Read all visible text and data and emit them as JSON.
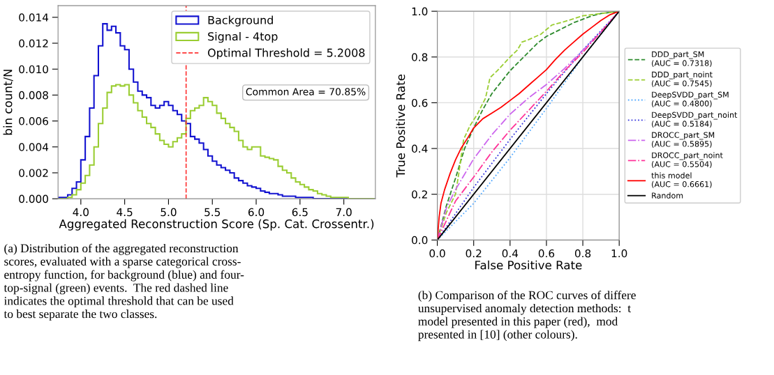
{
  "chart_data": [
    {
      "type": "histogram",
      "xlabel": "Aggregated Reconstruction Score (Sp. Cat. Crossentr.)",
      "ylabel": "bin count/N",
      "bins": [
        3.75,
        3.8,
        3.85,
        3.9,
        3.95,
        4.0,
        4.05,
        4.1,
        4.15,
        4.2,
        4.25,
        4.3,
        4.35,
        4.4,
        4.45,
        4.5,
        4.55,
        4.6,
        4.65,
        4.7,
        4.75,
        4.8,
        4.85,
        4.9,
        4.95,
        5.0,
        5.05,
        5.1,
        5.15,
        5.2,
        5.25,
        5.3,
        5.35,
        5.4,
        5.45,
        5.5,
        5.55,
        5.6,
        5.65,
        5.7,
        5.75,
        5.8,
        5.85,
        5.9,
        5.95,
        6.0,
        6.05,
        6.1,
        6.15,
        6.2,
        6.25,
        6.3,
        6.35,
        6.4,
        6.45,
        6.5,
        6.55,
        6.6,
        6.65,
        6.7,
        6.75,
        6.8,
        6.85,
        6.9,
        6.95,
        7.0,
        7.05,
        7.1,
        7.15,
        7.2,
        7.25,
        7.3,
        7.35
      ],
      "series": [
        {
          "name": "Background",
          "color": "#1212d0",
          "values": [
            0.0001,
            0.0001,
            0.0003,
            0.0008,
            0.0013,
            0.003,
            0.0048,
            0.007,
            0.0095,
            0.0118,
            0.0135,
            0.013,
            0.0133,
            0.0128,
            0.0118,
            0.0115,
            0.01,
            0.009,
            0.0083,
            0.008,
            0.0078,
            0.0072,
            0.007,
            0.0072,
            0.0075,
            0.0072,
            0.0068,
            0.0065,
            0.006,
            0.0058,
            0.0048,
            0.0046,
            0.0043,
            0.0038,
            0.0033,
            0.0029,
            0.0026,
            0.0024,
            0.0022,
            0.002,
            0.0016,
            0.0014,
            0.0012,
            0.001,
            0.0009,
            0.0008,
            0.0006,
            0.0005,
            0.0004,
            0.0004,
            0.0003,
            0.0002,
            0.0002,
            0.0002,
            0.0001,
            0.0001,
            0.0001,
            0.0001,
            0,
            0,
            0,
            0,
            0,
            0,
            0,
            0,
            0,
            0,
            0,
            0,
            0,
            0
          ]
        },
        {
          "name": "Signal - 4top",
          "color": "#9acd32",
          "values": [
            0,
            0,
            0.0001,
            0.0003,
            0.0007,
            0.0012,
            0.0018,
            0.0026,
            0.004,
            0.0058,
            0.007,
            0.0082,
            0.0087,
            0.0088,
            0.0087,
            0.0088,
            0.008,
            0.0074,
            0.0068,
            0.0063,
            0.0058,
            0.0055,
            0.005,
            0.0045,
            0.0042,
            0.004,
            0.0044,
            0.0047,
            0.005,
            0.0062,
            0.0068,
            0.007,
            0.0072,
            0.0078,
            0.0075,
            0.0072,
            0.0066,
            0.0062,
            0.0058,
            0.0055,
            0.0052,
            0.0045,
            0.004,
            0.0038,
            0.004,
            0.004,
            0.0033,
            0.0032,
            0.0031,
            0.003,
            0.0025,
            0.0022,
            0.002,
            0.0016,
            0.0013,
            0.0011,
            0.0009,
            0.0007,
            0.0006,
            0.0004,
            0.0003,
            0.0002,
            0.0001,
            0.0001,
            0.0001,
            0.0001,
            0,
            0,
            0,
            0,
            0,
            0
          ]
        }
      ],
      "xlim": [
        3.74,
        7.36
      ],
      "xticks": [
        {
          "value": 4.0,
          "label": "4.0"
        },
        {
          "value": 4.5,
          "label": "4.5"
        },
        {
          "value": 5.0,
          "label": "5.0"
        },
        {
          "value": 5.5,
          "label": "5.5"
        },
        {
          "value": 6.0,
          "label": "6.0"
        },
        {
          "value": 6.5,
          "label": "6.5"
        },
        {
          "value": 7.0,
          "label": "7.0"
        }
      ],
      "ylim": [
        0,
        0.0149
      ],
      "yticks": [
        {
          "value": 0,
          "label": "0.000"
        },
        {
          "value": 0.002,
          "label": "0.002"
        },
        {
          "value": 0.004,
          "label": "0.004"
        },
        {
          "value": 0.006,
          "label": "0.006"
        },
        {
          "value": 0.008,
          "label": "0.008"
        },
        {
          "value": 0.01,
          "label": "0.010"
        },
        {
          "value": 0.012,
          "label": "0.012"
        },
        {
          "value": 0.014,
          "label": "0.014"
        }
      ],
      "ref_lines": [
        {
          "axis": "x",
          "value": 5.2008,
          "label": "Optimal Threshold = 5.2008",
          "color": "#ff3333",
          "line_style": "dashed"
        }
      ],
      "annotations": [
        "Common Area = 70.85%",
        "(a) Distribution of the aggregated reconstruction\nscores, evaluated with a sparse categorical cross-\nentropy function, for background (blue) and four-\ntop-signal (green) events.  The red dashed line\nindicates the optimal threshold that can be used\nto best separate the two classes."
      ],
      "legend": "top right",
      "grid": false
    },
    {
      "type": "line",
      "xlabel": "False Positive Rate",
      "ylabel": "True Positive Rate",
      "series": [
        {
          "name": "DDD_part_SM\n(AUC = 0.7318)",
          "color": "#2e8b2e",
          "line_style": "dashed",
          "x": [
            0,
            0.05,
            0.1,
            0.15,
            0.2,
            0.25,
            0.3,
            0.35,
            0.4,
            0.45,
            0.5,
            0.55,
            0.6,
            0.65,
            0.7,
            0.75,
            0.8,
            0.85,
            0.9,
            1
          ],
          "values": [
            0,
            0.15,
            0.27,
            0.4,
            0.49,
            0.57,
            0.64,
            0.69,
            0.74,
            0.78,
            0.82,
            0.86,
            0.89,
            0.91,
            0.93,
            0.95,
            0.965,
            0.98,
            0.99,
            1
          ]
        },
        {
          "name": "DDD_part_noint\n(AUC = 0.7545)",
          "color": "#9acd32",
          "line_style": "dashed",
          "x": [
            0,
            0.05,
            0.1,
            0.12,
            0.13,
            0.145,
            0.18,
            0.22,
            0.265,
            0.29,
            0.33,
            0.4,
            0.44,
            0.465,
            0.5,
            0.57,
            0.63,
            0.7,
            0.8,
            0.9,
            1
          ],
          "values": [
            0,
            0.12,
            0.2,
            0.3,
            0.36,
            0.44,
            0.5,
            0.55,
            0.62,
            0.71,
            0.74,
            0.8,
            0.83,
            0.865,
            0.875,
            0.9,
            0.94,
            0.955,
            0.98,
            0.99,
            1
          ]
        },
        {
          "name": "DeepSVDD_part_SM\n(AUC = 0.4800)",
          "color": "#55aaff",
          "line_style": "dotted",
          "x": [
            0,
            0.2,
            0.4,
            0.6,
            0.8,
            0.9,
            1
          ],
          "values": [
            0,
            0.16,
            0.36,
            0.575,
            0.8,
            0.9,
            1
          ]
        },
        {
          "name": "DeepSVDD_part_noint\n(AUC = 0.5184)",
          "color": "#3333dd",
          "line_style": "dotted",
          "x": [
            0,
            0.2,
            0.4,
            0.6,
            0.8,
            1
          ],
          "values": [
            0,
            0.23,
            0.44,
            0.64,
            0.83,
            1
          ]
        },
        {
          "name": "DROCC_part_SM\n(AUC = 0.5895)",
          "color": "#cc66ee",
          "line_style": "dashdot",
          "x": [
            0,
            0.05,
            0.1,
            0.2,
            0.3,
            0.4,
            0.5,
            0.6,
            0.7,
            0.8,
            0.9,
            1
          ],
          "values": [
            0,
            0.14,
            0.22,
            0.355,
            0.46,
            0.55,
            0.62,
            0.68,
            0.75,
            0.83,
            0.91,
            1
          ]
        },
        {
          "name": "DROCC_part_noint\n(AUC = 0.5504)",
          "color": "#ff3399",
          "line_style": "dashdot",
          "x": [
            0,
            0.1,
            0.2,
            0.3,
            0.4,
            0.5,
            0.6,
            0.7,
            0.8,
            0.9,
            1
          ],
          "values": [
            0,
            0.17,
            0.275,
            0.385,
            0.48,
            0.565,
            0.65,
            0.74,
            0.82,
            0.91,
            1
          ]
        },
        {
          "name": "this model\n(AUC = 0.6661)",
          "color": "#ff0000",
          "line_style": "solid",
          "x": [
            0,
            0.01,
            0.02,
            0.04,
            0.07,
            0.1,
            0.13,
            0.17,
            0.2,
            0.25,
            0.3,
            0.35,
            0.4,
            0.45,
            0.5,
            0.55,
            0.6,
            0.65,
            0.7,
            0.75,
            0.8,
            0.85,
            0.9,
            0.95,
            1
          ],
          "values": [
            0,
            0.1,
            0.16,
            0.22,
            0.29,
            0.35,
            0.4,
            0.45,
            0.49,
            0.53,
            0.555,
            0.58,
            0.61,
            0.64,
            0.675,
            0.71,
            0.745,
            0.79,
            0.83,
            0.865,
            0.9,
            0.93,
            0.96,
            0.985,
            1
          ]
        },
        {
          "name": "Random",
          "color": "#000000",
          "line_style": "solid",
          "x": [
            0,
            1
          ],
          "values": [
            0,
            1
          ]
        }
      ],
      "xlim": [
        0,
        1
      ],
      "xticks": [
        {
          "value": 0,
          "label": "0.0"
        },
        {
          "value": 0.2,
          "label": "0.2"
        },
        {
          "value": 0.4,
          "label": "0.4"
        },
        {
          "value": 0.6,
          "label": "0.6"
        },
        {
          "value": 0.8,
          "label": "0.8"
        },
        {
          "value": 1,
          "label": "1.0"
        }
      ],
      "ylim": [
        0,
        1
      ],
      "yticks": [
        {
          "value": 0,
          "label": "0.0"
        },
        {
          "value": 0.2,
          "label": "0.2"
        },
        {
          "value": 0.4,
          "label": "0.4"
        },
        {
          "value": 0.6,
          "label": "0.6"
        },
        {
          "value": 0.8,
          "label": "0.8"
        },
        {
          "value": 1,
          "label": "1.0"
        }
      ],
      "annotations": [
        "(b) Comparison of the ROC curves of differe\nunsupervised anomaly detection methods:  t\nmodel presented in this paper (red),  mod\npresented in [10] (other colours)."
      ],
      "legend": "right",
      "grid": true
    }
  ]
}
